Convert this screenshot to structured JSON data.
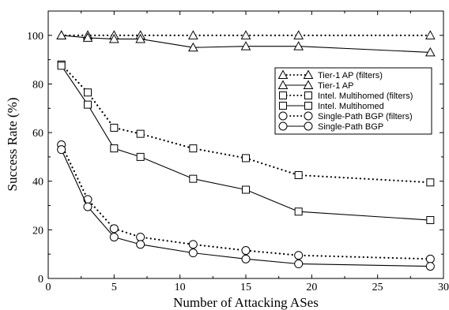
{
  "chart_data": {
    "type": "line",
    "title": "",
    "xlabel": "Number of Attacking ASes",
    "ylabel": "Success Rate (%)",
    "xlim": [
      0,
      30
    ],
    "ylim": [
      0,
      110
    ],
    "xticks": [
      0,
      5,
      10,
      15,
      20,
      25,
      30
    ],
    "yticks": [
      0,
      20,
      40,
      60,
      80,
      100
    ],
    "grid": false,
    "legend_position": "right",
    "x": [
      1,
      3,
      5,
      7,
      11,
      15,
      19,
      29
    ],
    "series": [
      {
        "name": "Tier-1 AP (filters)",
        "marker": "triangle",
        "line": "dotted",
        "values": [
          100,
          100,
          100,
          100,
          100,
          100,
          100,
          100
        ]
      },
      {
        "name": "Tier-1 AP",
        "marker": "triangle",
        "line": "solid",
        "values": [
          100,
          99,
          98.5,
          98.5,
          95,
          95.5,
          95.5,
          93
        ]
      },
      {
        "name": "Intel. Multihomed (filters)",
        "marker": "square",
        "line": "dotted",
        "values": [
          88,
          76.5,
          62,
          59.5,
          53.5,
          49.5,
          42.5,
          39.5
        ]
      },
      {
        "name": "Intel. Multihomed",
        "marker": "square",
        "line": "solid",
        "values": [
          87.5,
          71.5,
          53.5,
          50,
          41,
          36.5,
          27.5,
          24
        ]
      },
      {
        "name": "Single-Path BGP (filters)",
        "marker": "circle",
        "line": "dotted",
        "values": [
          55,
          32.5,
          20.5,
          17,
          14,
          11.5,
          9.5,
          8
        ]
      },
      {
        "name": "Single-Path BGP",
        "marker": "circle",
        "line": "solid",
        "values": [
          53,
          29.5,
          17,
          14,
          10.5,
          8,
          6,
          5
        ]
      }
    ]
  }
}
